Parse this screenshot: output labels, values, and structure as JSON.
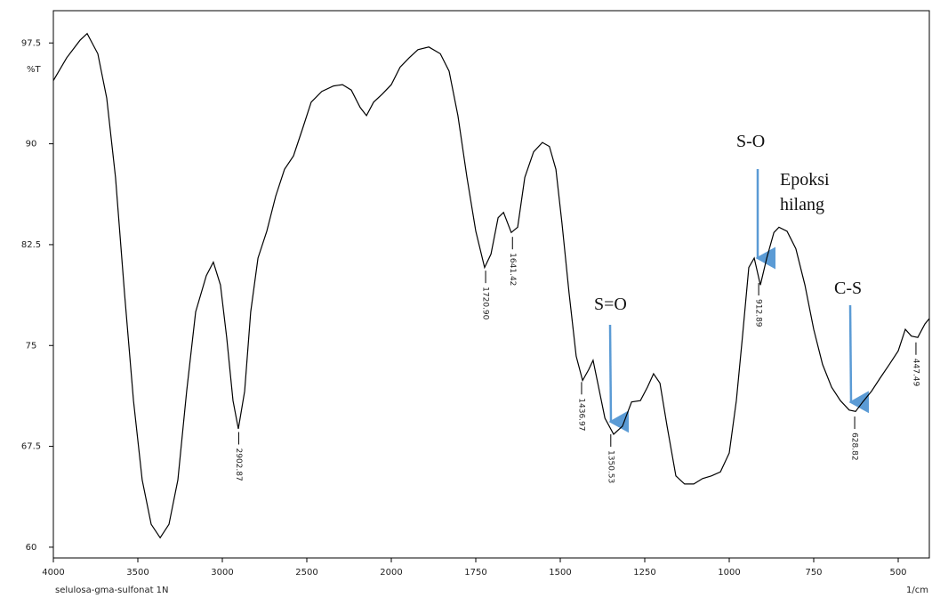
{
  "chart_data": {
    "type": "line",
    "y_axis_label": "%T",
    "x_axis_label": "1/cm",
    "sample_label": "selulosa-gma-sulfonat 1N",
    "x": [
      4000,
      3921,
      3842,
      3800,
      3737,
      3684,
      3632,
      3579,
      3526,
      3474,
      3421,
      3368,
      3316,
      3263,
      3211,
      3158,
      3095,
      3053,
      3011,
      2974,
      2937,
      2905,
      2868,
      2832,
      2789,
      2737,
      2684,
      2632,
      2579,
      2526,
      2474,
      2411,
      2342,
      2289,
      2237,
      2184,
      2147,
      2105,
      2053,
      2000,
      1974,
      1947,
      1921,
      1889,
      1855,
      1829,
      1803,
      1776,
      1750,
      1724,
      1705,
      1684,
      1668,
      1645,
      1626,
      1605,
      1579,
      1553,
      1532,
      1513,
      1495,
      1474,
      1453,
      1434,
      1416,
      1403,
      1389,
      1368,
      1342,
      1316,
      1289,
      1263,
      1242,
      1224,
      1205,
      1184,
      1158,
      1132,
      1105,
      1079,
      1053,
      1026,
      1000,
      979,
      961,
      942,
      926,
      908,
      889,
      868,
      853,
      829,
      803,
      776,
      750,
      724,
      697,
      671,
      645,
      626,
      605,
      579,
      553,
      526,
      500,
      479,
      461,
      442,
      421,
      408
    ],
    "y": [
      94.7,
      96.4,
      97.7,
      98.2,
      96.7,
      93.4,
      87.5,
      78.9,
      70.9,
      65.0,
      61.7,
      60.7,
      61.7,
      65.0,
      71.6,
      77.5,
      80.2,
      81.2,
      79.5,
      75.6,
      70.9,
      68.8,
      71.6,
      77.5,
      81.5,
      83.5,
      86.1,
      88.1,
      89.1,
      91.1,
      93.1,
      93.9,
      94.3,
      94.4,
      94.0,
      92.7,
      92.1,
      93.1,
      93.7,
      94.4,
      95.7,
      96.4,
      97.0,
      97.2,
      96.7,
      95.4,
      92.1,
      87.5,
      83.5,
      80.8,
      81.8,
      84.5,
      84.9,
      83.4,
      83.8,
      87.5,
      89.4,
      90.1,
      89.8,
      88.1,
      84.1,
      78.9,
      74.2,
      72.4,
      73.2,
      73.9,
      72.2,
      69.6,
      68.4,
      69.0,
      70.8,
      70.9,
      71.9,
      72.9,
      72.2,
      69.0,
      65.3,
      64.7,
      64.7,
      65.1,
      65.3,
      65.6,
      67.0,
      70.9,
      75.6,
      80.8,
      81.5,
      79.5,
      81.5,
      83.4,
      83.8,
      83.5,
      82.2,
      79.5,
      76.2,
      73.6,
      71.9,
      70.9,
      70.2,
      70.1,
      70.8,
      71.6,
      72.6,
      73.6,
      74.6,
      76.2,
      75.7,
      75.6,
      76.6,
      77.0
    ],
    "color": "#000000",
    "xlim": [
      4000,
      400
    ],
    "xticks": [
      4000,
      3500,
      3000,
      2500,
      2000,
      1750,
      1500,
      1250,
      1000,
      750,
      500
    ],
    "ylim": [
      59.2,
      99.9
    ],
    "yticks": [
      97.5,
      90,
      82.5,
      75,
      67.5,
      60
    ],
    "grid": false,
    "peaks": [
      2902.87,
      {
        "value": 1720.9,
        "label": "1720.90"
      },
      1641.42,
      1436.97,
      1350.53,
      912.89,
      628.82,
      447.49
    ],
    "annotations": [
      "S=O",
      "S-O",
      "Epoksi hilang",
      "C-S"
    ],
    "annotation_color": "#5b9bd5"
  }
}
